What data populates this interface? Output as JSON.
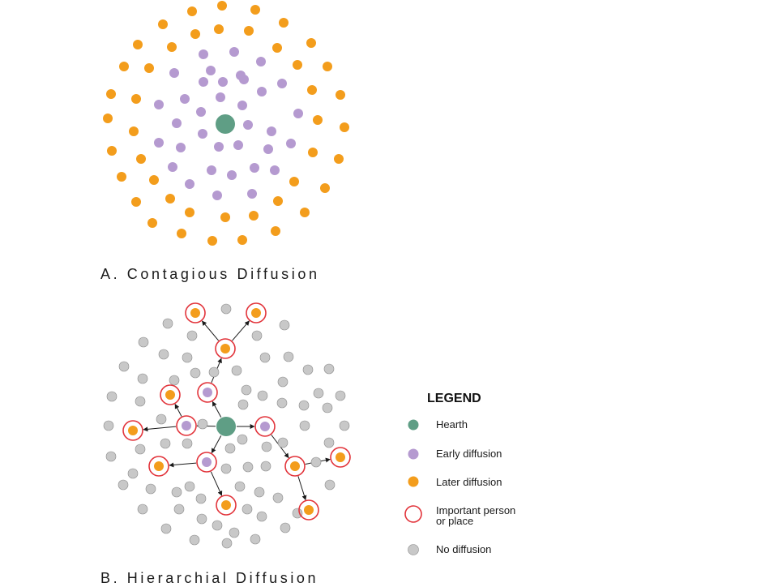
{
  "panels": {
    "contagious": {
      "caption": "A. Contagious Diffusion"
    },
    "hierarchical": {
      "caption": "B. Hierarchial Diffusion"
    }
  },
  "legend": {
    "title": "LEGEND",
    "items": [
      {
        "key": "hearth",
        "label": "Hearth"
      },
      {
        "key": "early",
        "label": "Early diffusion"
      },
      {
        "key": "later",
        "label": "Later diffusion"
      },
      {
        "key": "important",
        "label": "Important person\nor place"
      },
      {
        "key": "none",
        "label": "No diffusion"
      }
    ]
  },
  "colors": {
    "hearth": "#5f9e85",
    "early": "#b59ad0",
    "later": "#f39d1c",
    "important_ring": "#e2343b",
    "no_diffusion": "#c8c8c8",
    "arrow": "#1a1a1a",
    "dot_outline": "#8a8a8a"
  }
}
